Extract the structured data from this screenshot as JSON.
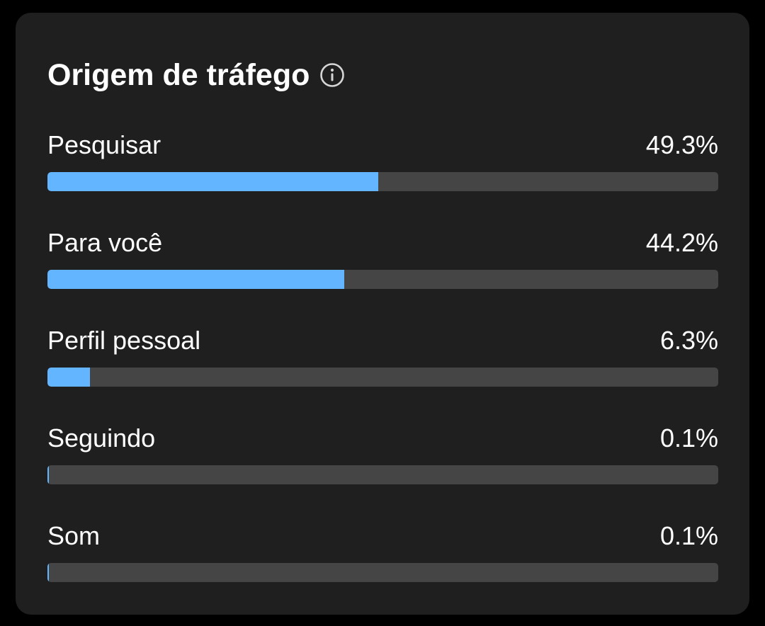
{
  "card": {
    "title": "Origem de tráfego",
    "info_icon": "info-circle-icon"
  },
  "colors": {
    "background": "#000000",
    "card": "#1f1f1f",
    "track": "#454545",
    "fill": "#64b5ff",
    "text": "#ffffff"
  },
  "sources": [
    {
      "label": "Pesquisar",
      "value_text": "49.3%",
      "percent": 49.3
    },
    {
      "label": "Para você",
      "value_text": "44.2%",
      "percent": 44.2
    },
    {
      "label": "Perfil pessoal",
      "value_text": "6.3%",
      "percent": 6.3
    },
    {
      "label": "Seguindo",
      "value_text": "0.1%",
      "percent": 0.1
    },
    {
      "label": "Som",
      "value_text": "0.1%",
      "percent": 0.1
    }
  ]
}
